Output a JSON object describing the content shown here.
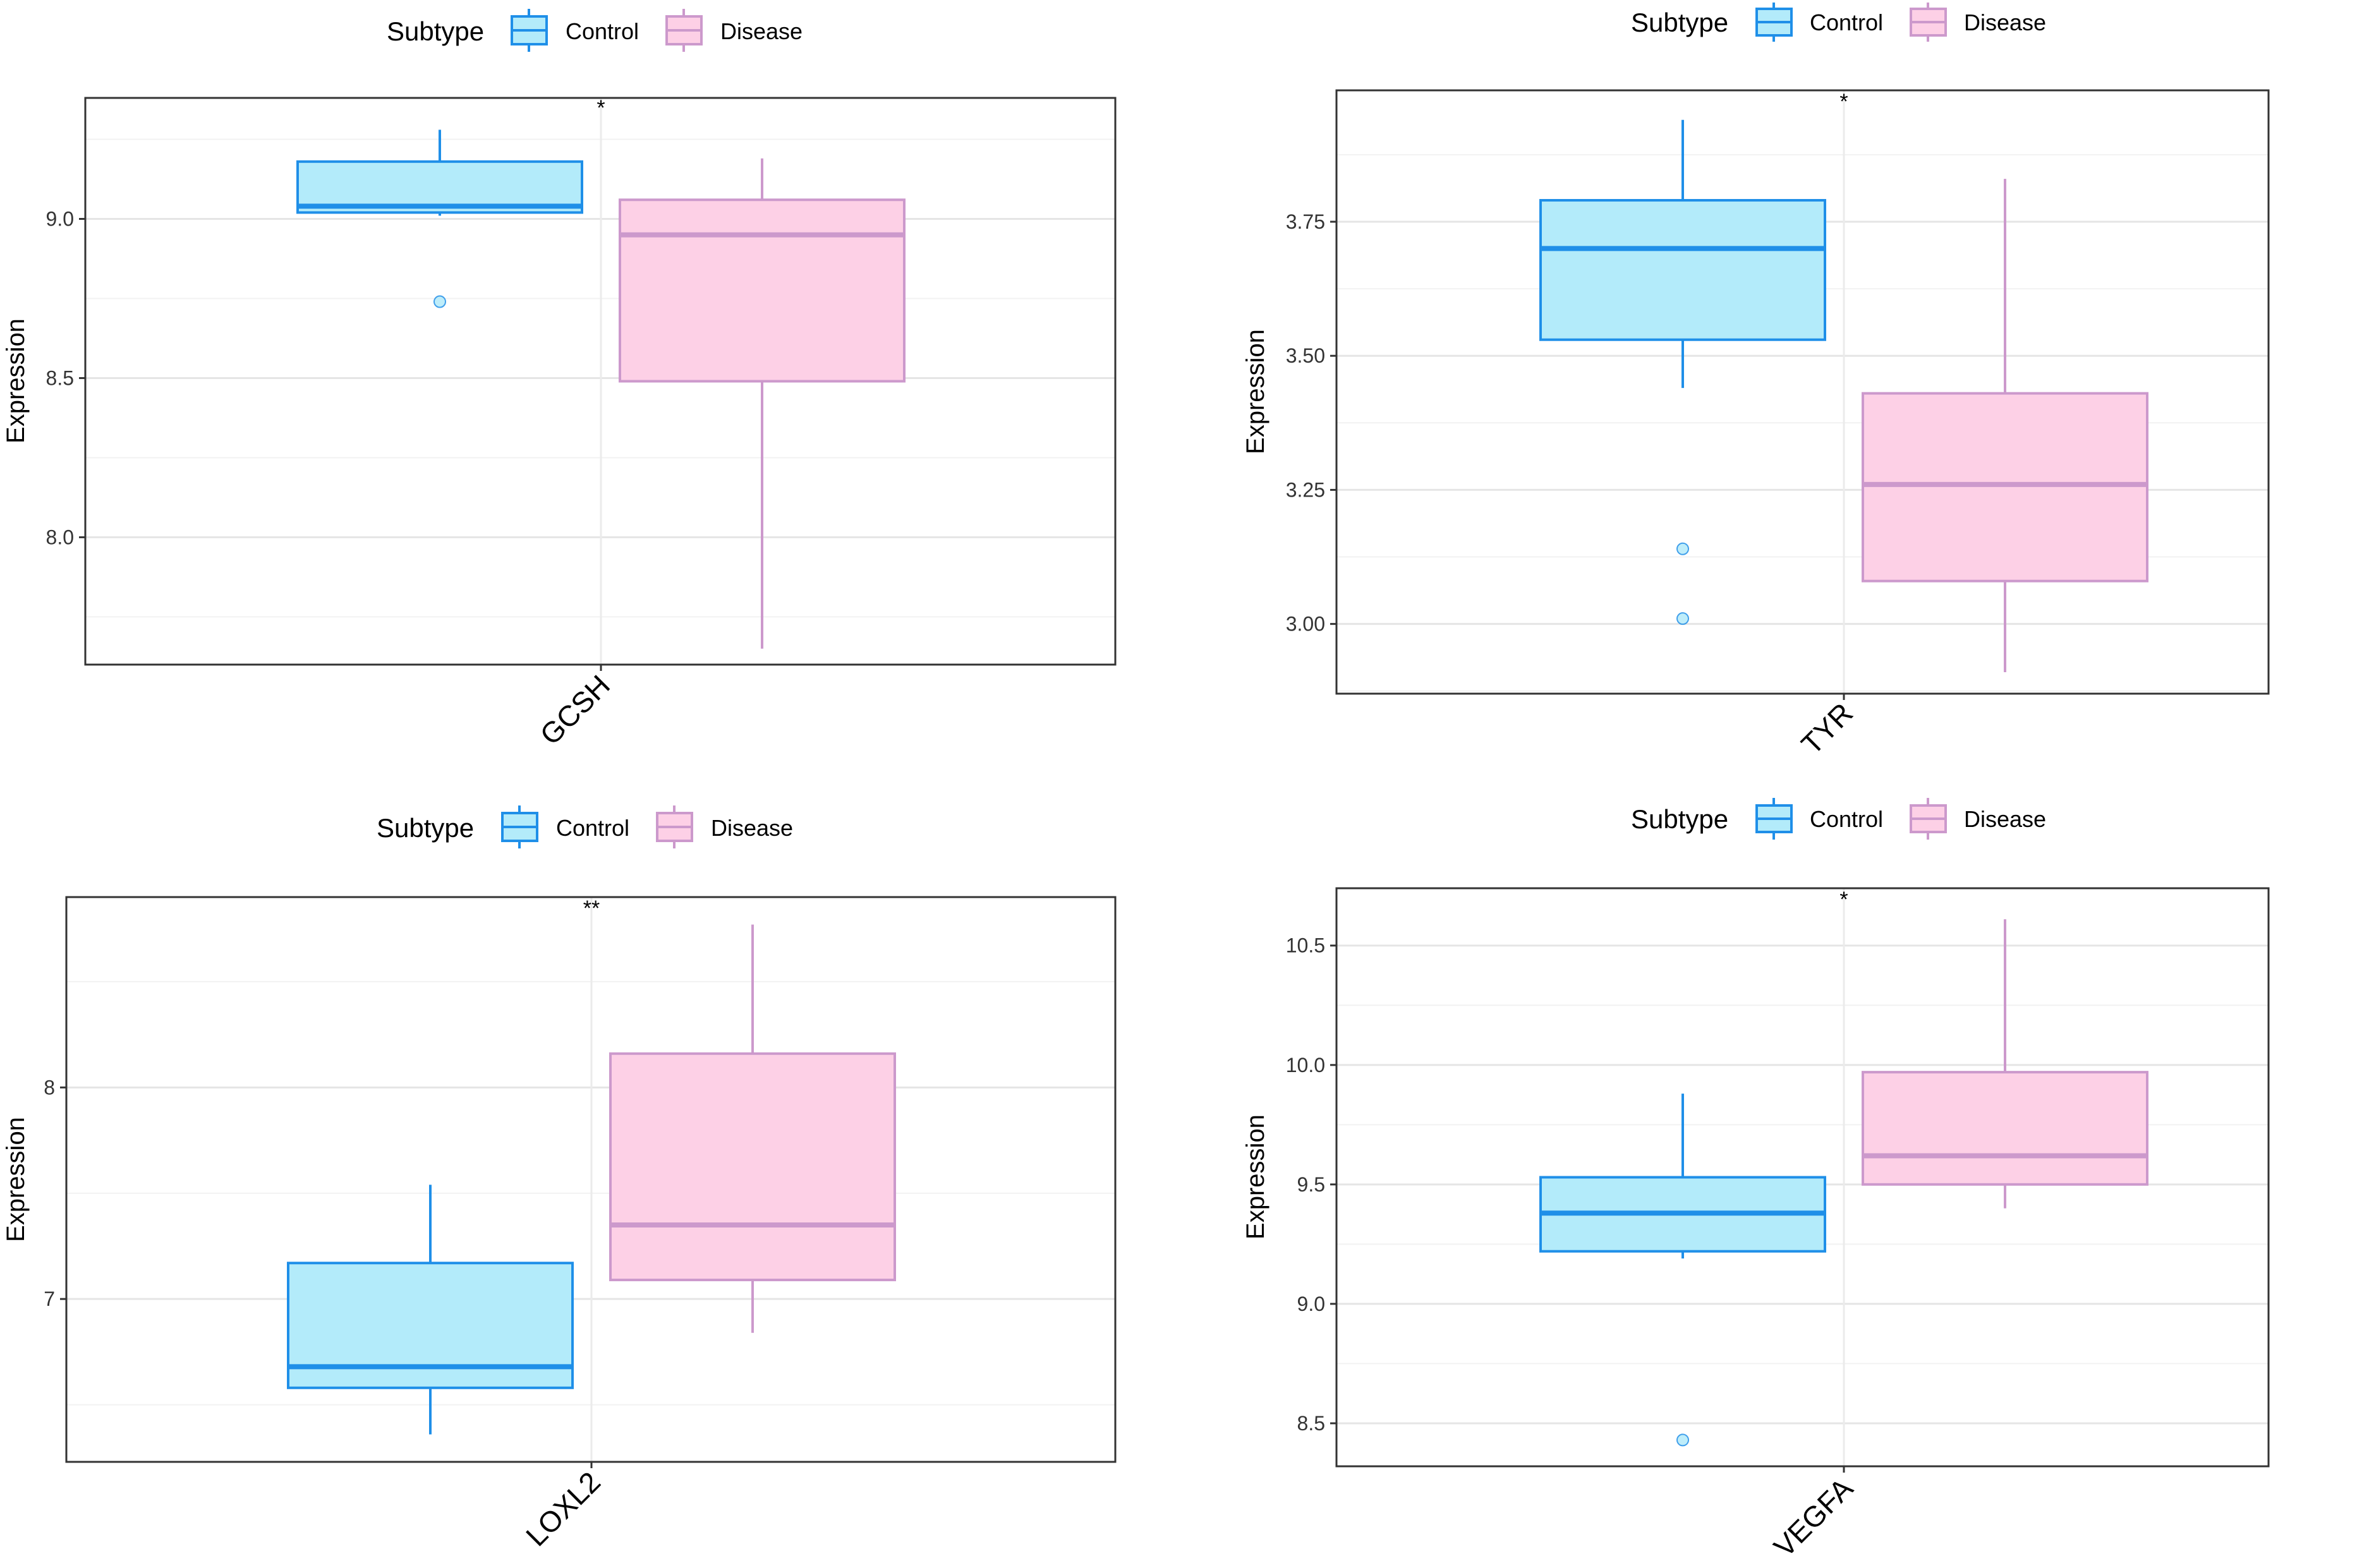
{
  "legend": {
    "title": "Subtype",
    "groups": [
      {
        "name": "Control",
        "stroke": "#1f8fe8",
        "fill": "#b3ebfa"
      },
      {
        "name": "Disease",
        "stroke": "#cc99cc",
        "fill": "#fdd0e6"
      }
    ],
    "position": "top"
  },
  "chart_data": [
    {
      "type": "box",
      "gene": "GCSH",
      "ylabel": "Expression",
      "ylim": [
        7.6,
        9.38
      ],
      "yticks": [
        8.0,
        8.5,
        9.0
      ],
      "ytick_labels": [
        "8.0",
        "8.5",
        "9.0"
      ],
      "significance": "*",
      "boxes": [
        {
          "group": "Control",
          "whisker_low": 9.01,
          "q1": 9.02,
          "median": 9.04,
          "q3": 9.18,
          "whisker_high": 9.28,
          "outliers": [
            8.74
          ]
        },
        {
          "group": "Disease",
          "whisker_low": 7.65,
          "q1": 8.49,
          "median": 8.95,
          "q3": 9.06,
          "whisker_high": 9.19,
          "outliers": []
        }
      ]
    },
    {
      "type": "box",
      "gene": "TYR",
      "ylabel": "Expression",
      "ylim": [
        2.87,
        3.995
      ],
      "yticks": [
        3.0,
        3.25,
        3.5,
        3.75
      ],
      "ytick_labels": [
        "3.00",
        "3.25",
        "3.50",
        "3.75"
      ],
      "significance": "*",
      "boxes": [
        {
          "group": "Control",
          "whisker_low": 3.44,
          "q1": 3.53,
          "median": 3.7,
          "q3": 3.79,
          "whisker_high": 3.94,
          "outliers": [
            3.14,
            3.01
          ]
        },
        {
          "group": "Disease",
          "whisker_low": 2.91,
          "q1": 3.08,
          "median": 3.26,
          "q3": 3.43,
          "whisker_high": 3.83,
          "outliers": []
        }
      ]
    },
    {
      "type": "box",
      "gene": "LOXL2",
      "ylabel": "Expression",
      "ylim": [
        6.23,
        8.9
      ],
      "yticks": [
        7,
        8
      ],
      "ytick_labels": [
        "7",
        "8"
      ],
      "significance": "**",
      "boxes": [
        {
          "group": "Control",
          "whisker_low": 6.36,
          "q1": 6.58,
          "median": 6.68,
          "q3": 7.17,
          "whisker_high": 7.54,
          "outliers": []
        },
        {
          "group": "Disease",
          "whisker_low": 6.84,
          "q1": 7.09,
          "median": 7.35,
          "q3": 8.16,
          "whisker_high": 8.77,
          "outliers": []
        }
      ]
    },
    {
      "type": "box",
      "gene": "VEGFA",
      "ylabel": "Expression",
      "ylim": [
        8.32,
        10.74
      ],
      "yticks": [
        8.5,
        9.0,
        9.5,
        10.0,
        10.5
      ],
      "ytick_labels": [
        "8.5",
        "9.0",
        "9.5",
        "10.0",
        "10.5"
      ],
      "significance": "*",
      "boxes": [
        {
          "group": "Control",
          "whisker_low": 9.19,
          "q1": 9.22,
          "median": 9.38,
          "q3": 9.53,
          "whisker_high": 9.88,
          "outliers": [
            8.43
          ]
        },
        {
          "group": "Disease",
          "whisker_low": 9.4,
          "q1": 9.5,
          "median": 9.62,
          "q3": 9.97,
          "whisker_high": 10.61,
          "outliers": []
        }
      ]
    }
  ]
}
